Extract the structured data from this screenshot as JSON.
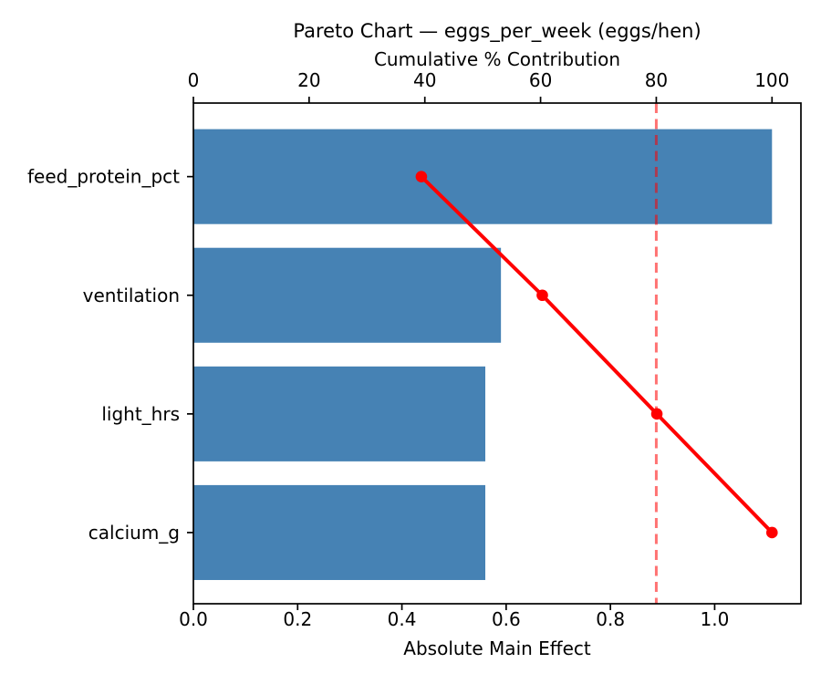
{
  "figure": {
    "background": "#ffffff"
  },
  "chart_data": {
    "type": "bar",
    "subtype": "pareto",
    "orientation": "horizontal",
    "title": "Pareto Chart — eggs_per_week (eggs/hen)",
    "categories": [
      "feed_protein_pct",
      "ventilation",
      "light_hrs",
      "calcium_g"
    ],
    "series": [
      {
        "name": "absolute_main_effect",
        "type": "bar",
        "axis": "bottom",
        "values": [
          1.11,
          0.59,
          0.56,
          0.56
        ]
      },
      {
        "name": "cumulative_pct",
        "type": "line",
        "axis": "top",
        "values": [
          39.4,
          60.3,
          80.1,
          100.0
        ]
      }
    ],
    "top_axis": {
      "label": "Cumulative % Contribution",
      "tick_values": [
        0,
        20,
        40,
        60,
        80,
        100
      ],
      "tick_labels": [
        "0",
        "20",
        "40",
        "60",
        "80",
        "100"
      ],
      "range": [
        0,
        105
      ]
    },
    "bottom_axis": {
      "label": "Absolute Main Effect",
      "tick_values": [
        0,
        0.2,
        0.4,
        0.6,
        0.8,
        1.0
      ],
      "tick_labels": [
        "0.0",
        "0.2",
        "0.4",
        "0.6",
        "0.8",
        "1.0"
      ],
      "range": [
        0,
        1.1655
      ]
    },
    "threshold_line": {
      "value": 80,
      "axis": "top",
      "style": "dashed"
    },
    "legend": "none",
    "grid": "off",
    "colors": {
      "bar": "#4682B4",
      "line": "#FF0000",
      "marker": "#FF0000",
      "threshold": "rgba(255,0,0,0.55)",
      "text": "#000000",
      "axis": "#000000"
    }
  }
}
